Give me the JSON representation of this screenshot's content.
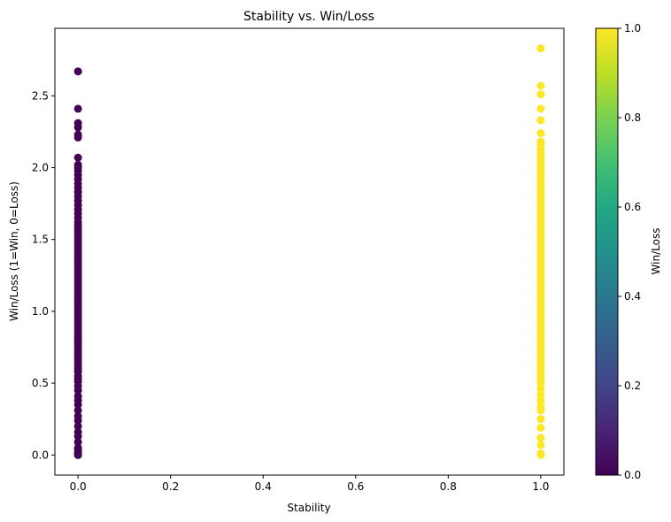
{
  "chart_data": {
    "type": "scatter",
    "title": "Stability vs. Win/Loss",
    "xlabel": "Stability",
    "ylabel": "Win/Loss (1=Win, 0=Loss)",
    "xlim": [
      -0.05,
      1.05
    ],
    "ylim": [
      -0.14,
      2.97
    ],
    "xticks": [
      "0.0",
      "0.2",
      "0.4",
      "0.6",
      "0.8",
      "1.0"
    ],
    "yticks": [
      "0.0",
      "0.5",
      "1.0",
      "1.5",
      "2.0",
      "2.5"
    ],
    "colorbar": {
      "label": "Win/Loss",
      "colormap": "viridis",
      "range": [
        0.0,
        1.0
      ],
      "ticks": [
        "0.0",
        "0.2",
        "0.4",
        "0.6",
        "0.8",
        "1.0"
      ]
    },
    "series": [
      {
        "x": 0,
        "color_value": 0,
        "color": "#440154",
        "y": [
          0.0,
          0.0,
          0.01,
          0.02,
          0.04,
          0.05,
          0.09,
          0.13,
          0.16,
          0.2,
          0.24,
          0.27,
          0.31,
          0.35,
          0.38,
          0.41,
          0.45,
          0.48,
          0.51,
          0.53,
          0.55,
          0.58,
          0.6,
          0.62,
          0.64,
          0.66,
          0.68,
          0.7,
          0.72,
          0.74,
          0.76,
          0.78,
          0.8,
          0.82,
          0.84,
          0.86,
          0.88,
          0.9,
          0.92,
          0.94,
          0.96,
          0.98,
          1.0,
          1.02,
          1.04,
          1.06,
          1.08,
          1.1,
          1.12,
          1.14,
          1.16,
          1.18,
          1.2,
          1.22,
          1.24,
          1.26,
          1.28,
          1.3,
          1.32,
          1.34,
          1.36,
          1.38,
          1.4,
          1.42,
          1.44,
          1.46,
          1.48,
          1.5,
          1.52,
          1.54,
          1.56,
          1.58,
          1.6,
          1.62,
          1.65,
          1.68,
          1.71,
          1.74,
          1.77,
          1.8,
          1.83,
          1.86,
          1.89,
          1.92,
          1.95,
          1.98,
          2.0,
          2.02,
          2.07,
          2.21,
          2.23,
          2.28,
          2.31,
          2.41,
          2.67
        ]
      },
      {
        "x": 1,
        "color_value": 1,
        "color": "#fde725",
        "y": [
          0.0,
          0.01,
          0.07,
          0.12,
          0.19,
          0.25,
          0.31,
          0.34,
          0.38,
          0.42,
          0.46,
          0.5,
          0.53,
          0.56,
          0.59,
          0.62,
          0.65,
          0.68,
          0.71,
          0.74,
          0.77,
          0.8,
          0.83,
          0.86,
          0.89,
          0.92,
          0.95,
          0.98,
          1.0,
          1.02,
          1.05,
          1.08,
          1.11,
          1.14,
          1.17,
          1.2,
          1.23,
          1.26,
          1.29,
          1.32,
          1.35,
          1.38,
          1.41,
          1.44,
          1.47,
          1.5,
          1.53,
          1.56,
          1.59,
          1.62,
          1.65,
          1.68,
          1.71,
          1.74,
          1.77,
          1.8,
          1.83,
          1.86,
          1.89,
          1.92,
          1.95,
          1.98,
          2.01,
          2.04,
          2.07,
          2.1,
          2.13,
          2.16,
          2.18,
          2.24,
          2.33,
          2.41,
          2.51,
          2.57,
          2.83
        ]
      }
    ]
  }
}
